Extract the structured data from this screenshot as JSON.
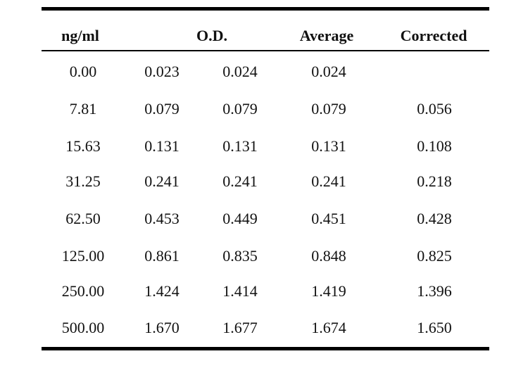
{
  "table": {
    "headers": {
      "conc": "ng/ml",
      "od": "O.D.",
      "average": "Average",
      "corrected": "Corrected"
    },
    "rows": [
      {
        "conc": "0.00",
        "od1": "0.023",
        "od2": "0.024",
        "average": "0.024",
        "corrected": ""
      },
      {
        "conc": "7.81",
        "od1": "0.079",
        "od2": "0.079",
        "average": "0.079",
        "corrected": "0.056"
      },
      {
        "conc": "15.63",
        "od1": "0.131",
        "od2": "0.131",
        "average": "0.131",
        "corrected": "0.108"
      },
      {
        "conc": "31.25",
        "od1": "0.241",
        "od2": "0.241",
        "average": "0.241",
        "corrected": "0.218"
      },
      {
        "conc": "62.50",
        "od1": "0.453",
        "od2": "0.449",
        "average": "0.451",
        "corrected": "0.428"
      },
      {
        "conc": "125.00",
        "od1": "0.861",
        "od2": "0.835",
        "average": "0.848",
        "corrected": "0.825"
      },
      {
        "conc": "250.00",
        "od1": "1.424",
        "od2": "1.414",
        "average": "1.419",
        "corrected": "1.396"
      },
      {
        "conc": "500.00",
        "od1": "1.670",
        "od2": "1.677",
        "average": "1.674",
        "corrected": "1.650"
      }
    ]
  }
}
